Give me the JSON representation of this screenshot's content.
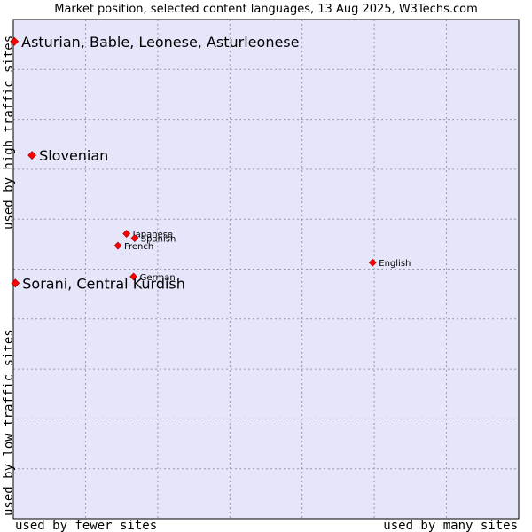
{
  "chart_data": {
    "type": "scatter",
    "title": "Market position, selected content languages, 13 Aug 2025, W3Techs.com",
    "xlabel_left": "used by fewer sites",
    "xlabel_right": "used by many sites",
    "ylabel_bottom": "used by low traffic sites",
    "ylabel_top": "used by high traffic sites",
    "grid": true,
    "xlim": [
      0,
      100
    ],
    "ylim": [
      0,
      100
    ],
    "colors": {
      "plot_bg": "#e6e6fa",
      "grid": "#9999aa",
      "point": "#ff0000",
      "point_edge": "#990000",
      "frame": "#000000"
    },
    "points": [
      {
        "label": "Asturian, Bable, Leonese, Asturleonese",
        "x": 0.2,
        "y": 95.6,
        "size": "large"
      },
      {
        "label": "Slovenian",
        "x": 3.7,
        "y": 72.8,
        "size": "large"
      },
      {
        "label": "Japanese",
        "x": 22.4,
        "y": 57.1,
        "size": "small"
      },
      {
        "label": "Spanish",
        "x": 24.0,
        "y": 56.2,
        "size": "small"
      },
      {
        "label": "French",
        "x": 20.7,
        "y": 54.7,
        "size": "small"
      },
      {
        "label": "German",
        "x": 23.8,
        "y": 48.5,
        "size": "small"
      },
      {
        "label": "English",
        "x": 71.1,
        "y": 51.3,
        "size": "small"
      },
      {
        "label": "Sorani, Central Kurdish",
        "x": 0.4,
        "y": 47.2,
        "size": "large"
      }
    ]
  }
}
